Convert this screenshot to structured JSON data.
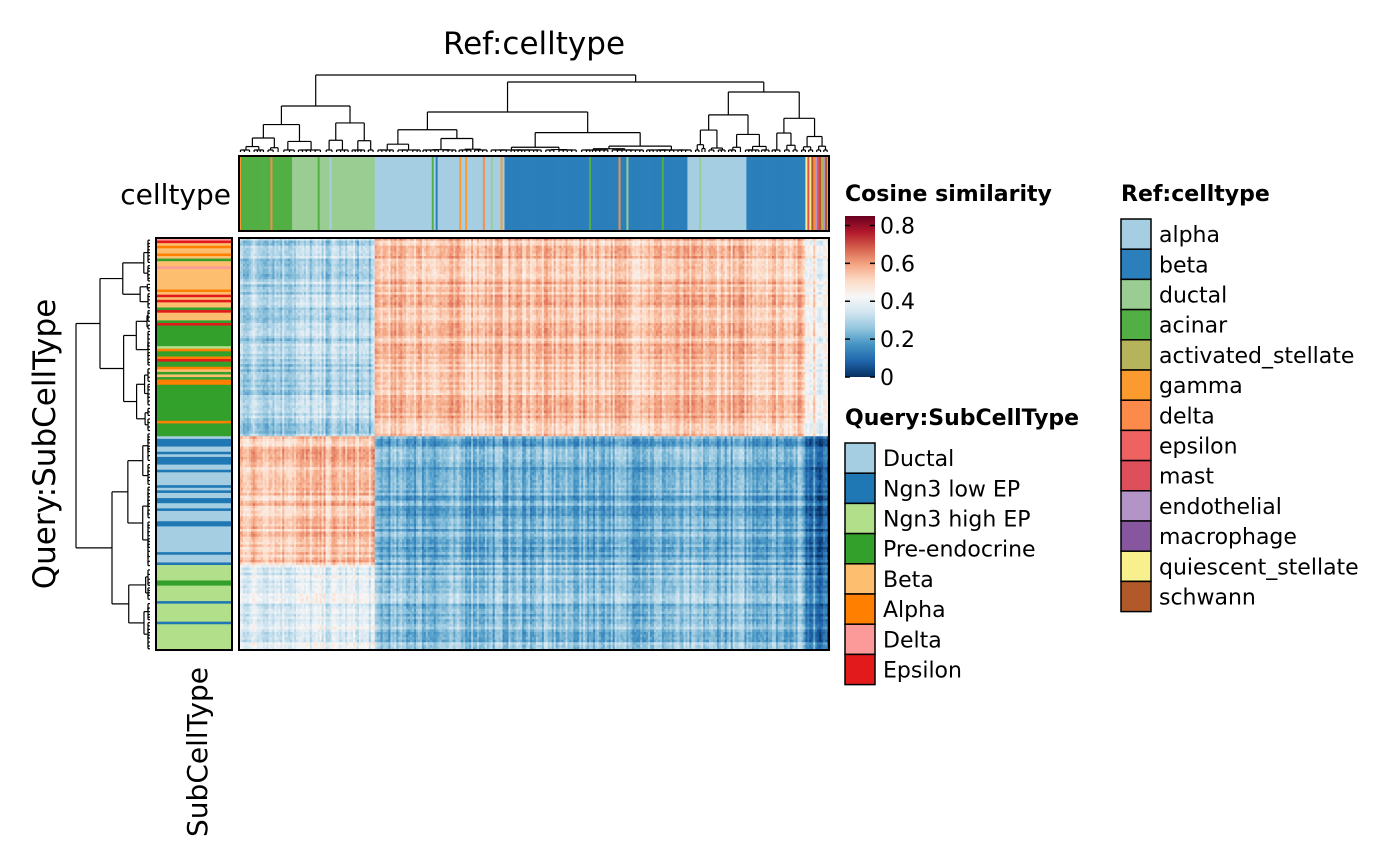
{
  "chart_data": {
    "type": "heatmap",
    "title": "Ref:celltype",
    "column_annotation_label": "celltype",
    "row_title": "Query:SubCellType",
    "row_annotation_label": "SubCellType",
    "color_scale": {
      "title": "Cosine similarity",
      "ticks": [
        "0.8",
        "0.6",
        "0.4",
        "0.2",
        "0"
      ],
      "min": 0,
      "max": 0.85,
      "colors": [
        "#053061",
        "#2166ac",
        "#4393c3",
        "#92c5de",
        "#d1e5f0",
        "#f7f7f7",
        "#fddbc7",
        "#f4a582",
        "#d6604d",
        "#b2182b",
        "#67001f"
      ]
    },
    "query_legend": {
      "title": "Query:SubCellType",
      "items": [
        {
          "label": "Ductal",
          "color": "#a6cee3"
        },
        {
          "label": "Ngn3 low EP",
          "color": "#1f78b4"
        },
        {
          "label": "Ngn3 high EP",
          "color": "#b2df8a"
        },
        {
          "label": "Pre-endocrine",
          "color": "#33a02c"
        },
        {
          "label": "Beta",
          "color": "#fdbf6f"
        },
        {
          "label": "Alpha",
          "color": "#ff7f00"
        },
        {
          "label": "Delta",
          "color": "#fb9a99"
        },
        {
          "label": "Epsilon",
          "color": "#e31a1c"
        }
      ]
    },
    "ref_legend": {
      "title": "Ref:celltype",
      "items": [
        {
          "label": "alpha",
          "color": "#a6cee3"
        },
        {
          "label": "beta",
          "color": "#2b7fba"
        },
        {
          "label": "ductal",
          "color": "#99cd91"
        },
        {
          "label": "acinar",
          "color": "#52af44"
        },
        {
          "label": "activated_stellate",
          "color": "#b5b45a"
        },
        {
          "label": "gamma",
          "color": "#fb9a2f"
        },
        {
          "label": "delta",
          "color": "#fb8a4b"
        },
        {
          "label": "epsilon",
          "color": "#ee6361"
        },
        {
          "label": "mast",
          "color": "#dd4f5b"
        },
        {
          "label": "endothelial",
          "color": "#b294c7"
        },
        {
          "label": "macrophage",
          "color": "#86579e"
        },
        {
          "label": "quiescent_stellate",
          "color": "#f7f08c"
        },
        {
          "label": "schwann",
          "color": "#b15928"
        }
      ]
    },
    "column_groups": [
      {
        "celltype": "acinar",
        "fraction": 0.09
      },
      {
        "celltype": "ductal",
        "fraction": 0.14
      },
      {
        "celltype": "alpha",
        "fraction": 0.22
      },
      {
        "celltype": "beta",
        "fraction": 0.31
      },
      {
        "celltype": "alpha",
        "fraction": 0.1
      },
      {
        "celltype": "beta",
        "fraction": 0.1
      },
      {
        "celltype": "mixed",
        "fraction": 0.04
      }
    ],
    "row_groups": [
      {
        "subcelltype": "Beta",
        "fraction": 0.2
      },
      {
        "subcelltype": "Pre-endocrine",
        "fraction": 0.28
      },
      {
        "subcelltype": "Ductal",
        "fraction": 0.31
      },
      {
        "subcelltype": "Ngn3 high EP",
        "fraction": 0.21
      }
    ],
    "value_blocks": [
      {
        "rows": "upper",
        "cols": "left",
        "value": 0.3
      },
      {
        "rows": "upper",
        "cols": "right",
        "value": 0.55
      },
      {
        "rows": "lower",
        "cols": "left",
        "value": 0.55
      },
      {
        "rows": "lower",
        "cols": "right",
        "value": 0.22
      },
      {
        "rows": "bottom",
        "cols": "left",
        "value": 0.38
      },
      {
        "rows": "bottom",
        "cols": "right",
        "value": 0.25
      }
    ]
  }
}
